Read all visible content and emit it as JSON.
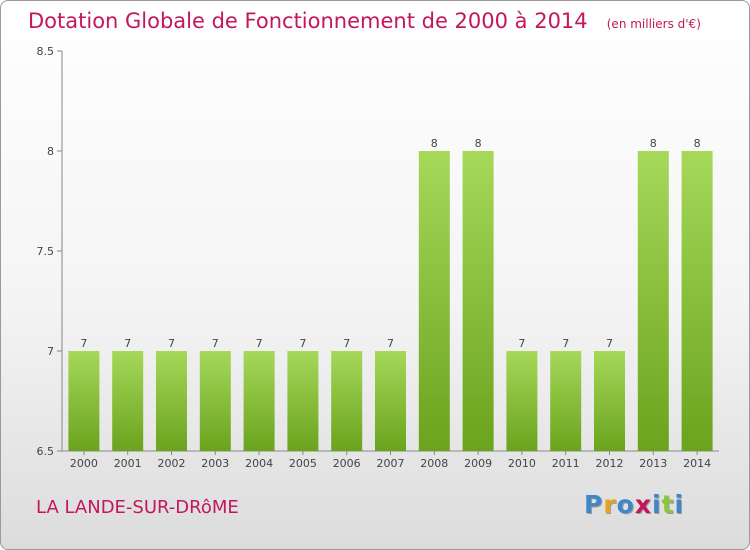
{
  "title": "Dotation Globale de Fonctionnement de 2000 à 2014",
  "unit": "(en milliers d'€)",
  "commune": "LA LANDE-SUR-DRôME",
  "logo": {
    "text": "Proxiti",
    "colors": [
      "#3f87c8",
      "#e8a020",
      "#3f87c8",
      "#c2185b",
      "#3f87c8",
      "#8cc63f",
      "#3f87c8"
    ]
  },
  "colors": {
    "bar_light": "#a6d85a",
    "bar_dark": "#6aa31e",
    "title": "#c2185b",
    "axis": "#888888"
  },
  "chart_data": {
    "type": "bar",
    "categories": [
      "2000",
      "2001",
      "2002",
      "2003",
      "2004",
      "2005",
      "2006",
      "2007",
      "2008",
      "2009",
      "2010",
      "2011",
      "2012",
      "2013",
      "2014"
    ],
    "values": [
      7,
      7,
      7,
      7,
      7,
      7,
      7,
      7,
      8,
      8,
      7,
      7,
      7,
      8,
      8
    ],
    "data_labels": [
      "7",
      "7",
      "7",
      "7",
      "7",
      "7",
      "7",
      "7",
      "8",
      "8",
      "7",
      "7",
      "7",
      "8",
      "8"
    ],
    "yticks": [
      6.5,
      7,
      7.5,
      8,
      8.5
    ],
    "ytick_labels": [
      "6.5",
      "7",
      "7.5",
      "8",
      "8.5"
    ],
    "ylim": [
      6.5,
      8.5
    ],
    "grid": false,
    "legend": "none"
  }
}
